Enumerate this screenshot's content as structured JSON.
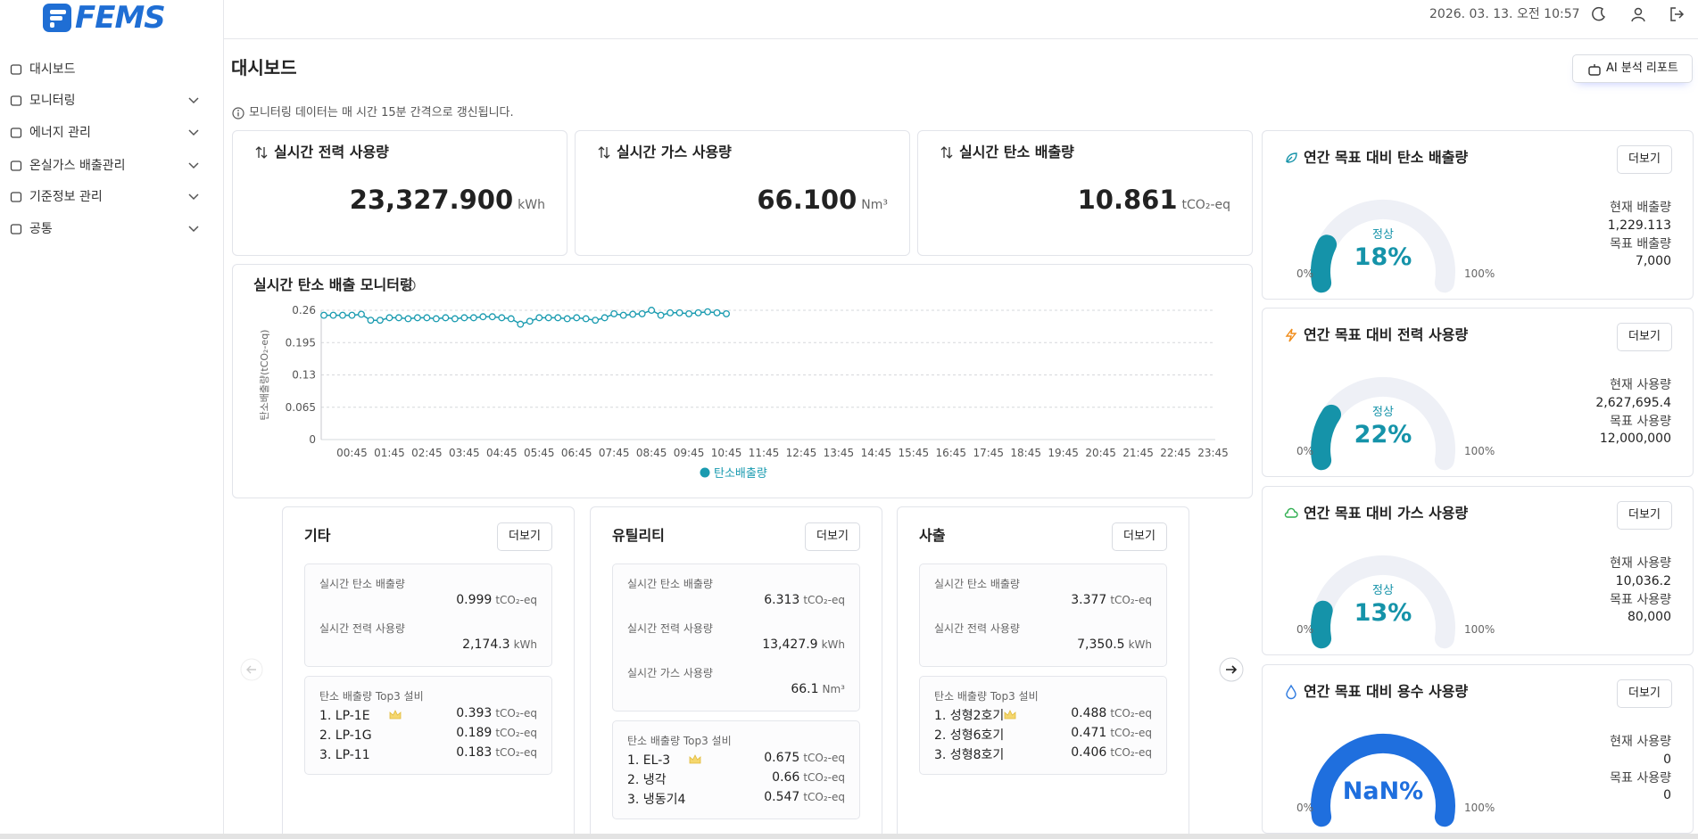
{
  "sidebar": {
    "logo": "FEMS",
    "menu": [
      "대시보드",
      "모니터링",
      "에너지 관리",
      "온실가스 배출관리",
      "기준정보 관리",
      "공통"
    ]
  },
  "header": {
    "datetime": "2026. 03. 13. 오전 10:57"
  },
  "page": {
    "title": "대시보드",
    "ai_button": "AI 분석 리포트",
    "notice": "모니터링 데이터는 매 시간 15분 간격으로 갱신됩니다."
  },
  "kpis": [
    {
      "title": "실시간 전력 사용량",
      "value": "23,327.900",
      "unit": "kWh"
    },
    {
      "title": "실시간 가스 사용량",
      "value": "66.100",
      "unit": "Nm³"
    },
    {
      "title": "실시간 탄소 배출량",
      "value": "10.861",
      "unit": "tCO₂-eq"
    }
  ],
  "chart_data": {
    "type": "line",
    "title": "실시간 탄소 배출 모니터링",
    "y_label": "탄소배출량(tCO₂-eq)",
    "categories": [
      null,
      null,
      null,
      "00:45",
      null,
      null,
      null,
      "01:45",
      null,
      null,
      null,
      "02:45",
      null,
      null,
      null,
      "03:45",
      null,
      null,
      null,
      "04:45",
      null,
      null,
      null,
      "05:45",
      null,
      null,
      null,
      "06:45",
      null,
      null,
      null,
      "07:45",
      null,
      null,
      null,
      "08:45",
      null,
      null,
      null,
      "09:45",
      null,
      null,
      null,
      "10:45",
      null,
      null,
      null,
      "11:45",
      null,
      null,
      null,
      "12:45",
      null,
      null,
      null,
      "13:45",
      null,
      null,
      null,
      "14:45",
      null,
      null,
      null,
      "15:45",
      null,
      null,
      null,
      "16:45",
      null,
      null,
      null,
      "17:45",
      null,
      null,
      null,
      "18:45",
      null,
      null,
      null,
      "19:45",
      null,
      null,
      null,
      "20:45",
      null,
      null,
      null,
      "21:45",
      null,
      null,
      null,
      "22:45",
      null,
      null,
      null,
      "23:45"
    ],
    "series": [
      {
        "name": "탄소배출량",
        "color": "#1a9bb0",
        "values": [
          0.25,
          0.25,
          0.25,
          0.25,
          0.252,
          0.24,
          0.24,
          0.245,
          0.245,
          0.243,
          0.245,
          0.245,
          0.243,
          0.245,
          0.243,
          0.245,
          0.245,
          0.247,
          0.247,
          0.245,
          0.243,
          0.232,
          0.238,
          0.245,
          0.245,
          0.245,
          0.243,
          0.245,
          0.243,
          0.24,
          0.245,
          0.253,
          0.25,
          0.252,
          0.253,
          0.26,
          0.25,
          0.255,
          0.255,
          0.253,
          0.255,
          0.257,
          0.255,
          0.253,
          null,
          null,
          null,
          null,
          null,
          null,
          null,
          null,
          null,
          null,
          null,
          null,
          null,
          null,
          null,
          null,
          null,
          null,
          null,
          null,
          null,
          null,
          null,
          null,
          null,
          null,
          null,
          null,
          null,
          null,
          null,
          null,
          null,
          null,
          null,
          null,
          null,
          null,
          null,
          null,
          null,
          null,
          null,
          null,
          null,
          null,
          null,
          null,
          null,
          null,
          null,
          null
        ]
      }
    ],
    "ylim": [
      0,
      0.26
    ],
    "yticks": [
      0,
      0.065,
      0.13,
      0.195,
      0.26
    ],
    "grid": true,
    "legend": "bottom"
  },
  "zones": [
    {
      "name": "기타",
      "button": "더보기",
      "metrics": [
        {
          "label": "실시간 탄소 배출량",
          "value": "0.999",
          "unit": "tCO₂-eq"
        },
        {
          "label": "실시간 전력 사용량",
          "value": "2,174.3",
          "unit": "kWh"
        }
      ],
      "top3_title": "탄소 배출량 Top3 설비",
      "top3": [
        {
          "name": "1. LP-1E",
          "value": "0.393",
          "unit": "tCO₂-eq"
        },
        {
          "name": "2. LP-1G",
          "value": "0.189",
          "unit": "tCO₂-eq"
        },
        {
          "name": "3. LP-11",
          "value": "0.183",
          "unit": "tCO₂-eq"
        }
      ]
    },
    {
      "name": "유틸리티",
      "button": "더보기",
      "metrics": [
        {
          "label": "실시간 탄소 배출량",
          "value": "6.313",
          "unit": "tCO₂-eq"
        },
        {
          "label": "실시간 전력 사용량",
          "value": "13,427.9",
          "unit": "kWh"
        },
        {
          "label": "실시간 가스 사용량",
          "value": "66.1",
          "unit": "Nm³"
        }
      ],
      "top3_title": "탄소 배출량 Top3 설비",
      "top3": [
        {
          "name": "1. EL-3",
          "value": "0.675",
          "unit": "tCO₂-eq"
        },
        {
          "name": "2. 냉각",
          "value": "0.66",
          "unit": "tCO₂-eq"
        },
        {
          "name": "3. 냉동기4",
          "value": "0.547",
          "unit": "tCO₂-eq"
        }
      ]
    },
    {
      "name": "사출",
      "button": "더보기",
      "metrics": [
        {
          "label": "실시간 탄소 배출량",
          "value": "3.377",
          "unit": "tCO₂-eq"
        },
        {
          "label": "실시간 전력 사용량",
          "value": "7,350.5",
          "unit": "kWh"
        }
      ],
      "top3_title": "탄소 배출량 Top3 설비",
      "top3": [
        {
          "name": "1. 성형2호기",
          "value": "0.488",
          "unit": "tCO₂-eq"
        },
        {
          "name": "2. 성형6호기",
          "value": "0.471",
          "unit": "tCO₂-eq"
        },
        {
          "name": "3. 성형8호기",
          "value": "0.406",
          "unit": "tCO₂-eq"
        }
      ]
    }
  ],
  "goals": [
    {
      "title": "연간 목표 대비 탄소 배출량",
      "button": "더보기",
      "status": "정상",
      "percent": 18,
      "percent_label": "18%",
      "color": "#1593a9",
      "min_label": "0%",
      "max_label": "100%",
      "current_label": "현재 배출량",
      "current": "1,229.113",
      "target_label": "목표 배출량",
      "target": "7,000"
    },
    {
      "title": "연간 목표 대비 전력 사용량",
      "button": "더보기",
      "status": "정상",
      "percent": 22,
      "percent_label": "22%",
      "color": "#1593a9",
      "min_label": "0%",
      "max_label": "100%",
      "current_label": "현재 사용량",
      "current": "2,627,695.4",
      "target_label": "목표 사용량",
      "target": "12,000,000"
    },
    {
      "title": "연간 목표 대비 가스 사용량",
      "button": "더보기",
      "status": "정상",
      "percent": 13,
      "percent_label": "13%",
      "color": "#1593a9",
      "min_label": "0%",
      "max_label": "100%",
      "current_label": "현재 사용량",
      "current": "10,036.2",
      "target_label": "목표 사용량",
      "target": "80,000"
    },
    {
      "title": "연간 목표 대비 용수 사용량",
      "button": "더보기",
      "percent": null,
      "percent_label": "NaN%",
      "color": "#1f6fde",
      "min_label": "0%",
      "max_label": "100%",
      "current_label": "현재 사용량",
      "current": "0",
      "target_label": "목표 사용량",
      "target": "0"
    }
  ]
}
